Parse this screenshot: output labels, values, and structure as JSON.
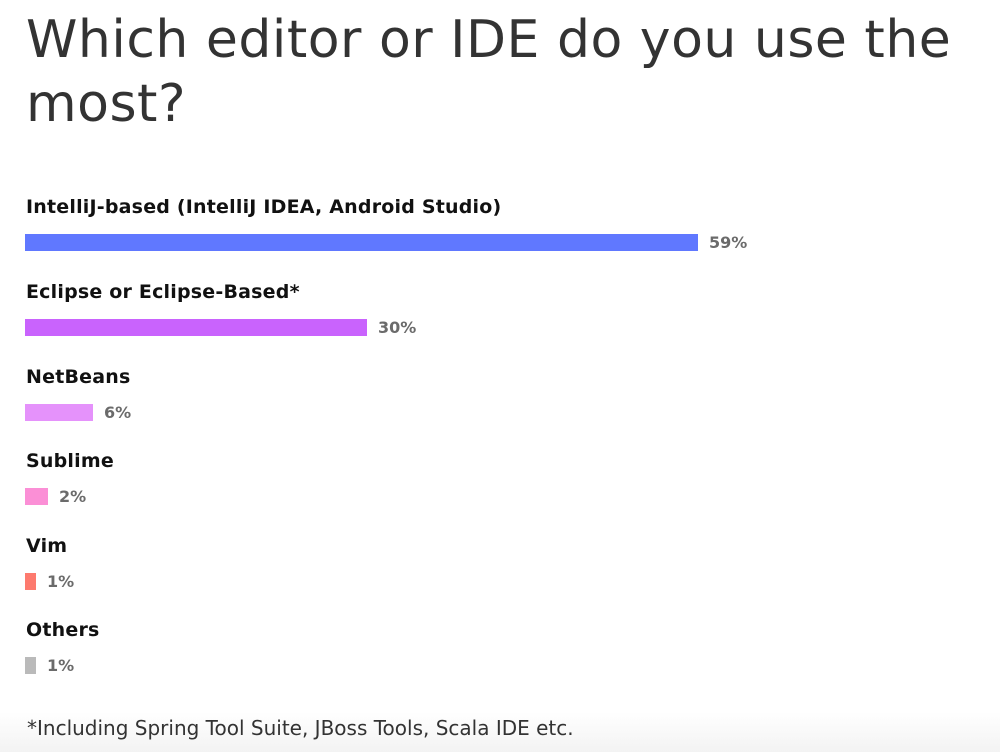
{
  "chart_data": {
    "type": "bar",
    "orientation": "horizontal",
    "title": "Which editor or IDE do you use the most?",
    "categories": [
      "IntelliJ-based (IntelliJ IDEA, Android Studio)",
      "Eclipse or Eclipse-Based*",
      "NetBeans",
      "Sublime",
      "Vim",
      "Others"
    ],
    "values": [
      59,
      30,
      6,
      2,
      1,
      1
    ],
    "value_labels": [
      "59%",
      "30%",
      "6%",
      "2%",
      "1%",
      "1%"
    ],
    "colors": [
      "#6078ff",
      "#c963fd",
      "#e592fb",
      "#fb8fd6",
      "#fd7a6e",
      "#bababa"
    ],
    "unit": "%",
    "xlabel": "",
    "ylabel": "",
    "grid": false,
    "legend": "none",
    "footnote": "*Including Spring Tool Suite, JBoss Tools, Scala IDE etc."
  },
  "title": "Which editor or IDE do you use the most?",
  "rows": [
    {
      "label": "IntelliJ-based (IntelliJ IDEA, Android Studio)",
      "value": "59%"
    },
    {
      "label": "Eclipse or Eclipse-Based*",
      "value": "30%"
    },
    {
      "label": "NetBeans",
      "value": "6%"
    },
    {
      "label": "Sublime",
      "value": "2%"
    },
    {
      "label": "Vim",
      "value": "1%"
    },
    {
      "label": "Others",
      "value": "1%"
    }
  ],
  "footnote": "*Including Spring Tool Suite, JBoss Tools, Scala IDE etc."
}
